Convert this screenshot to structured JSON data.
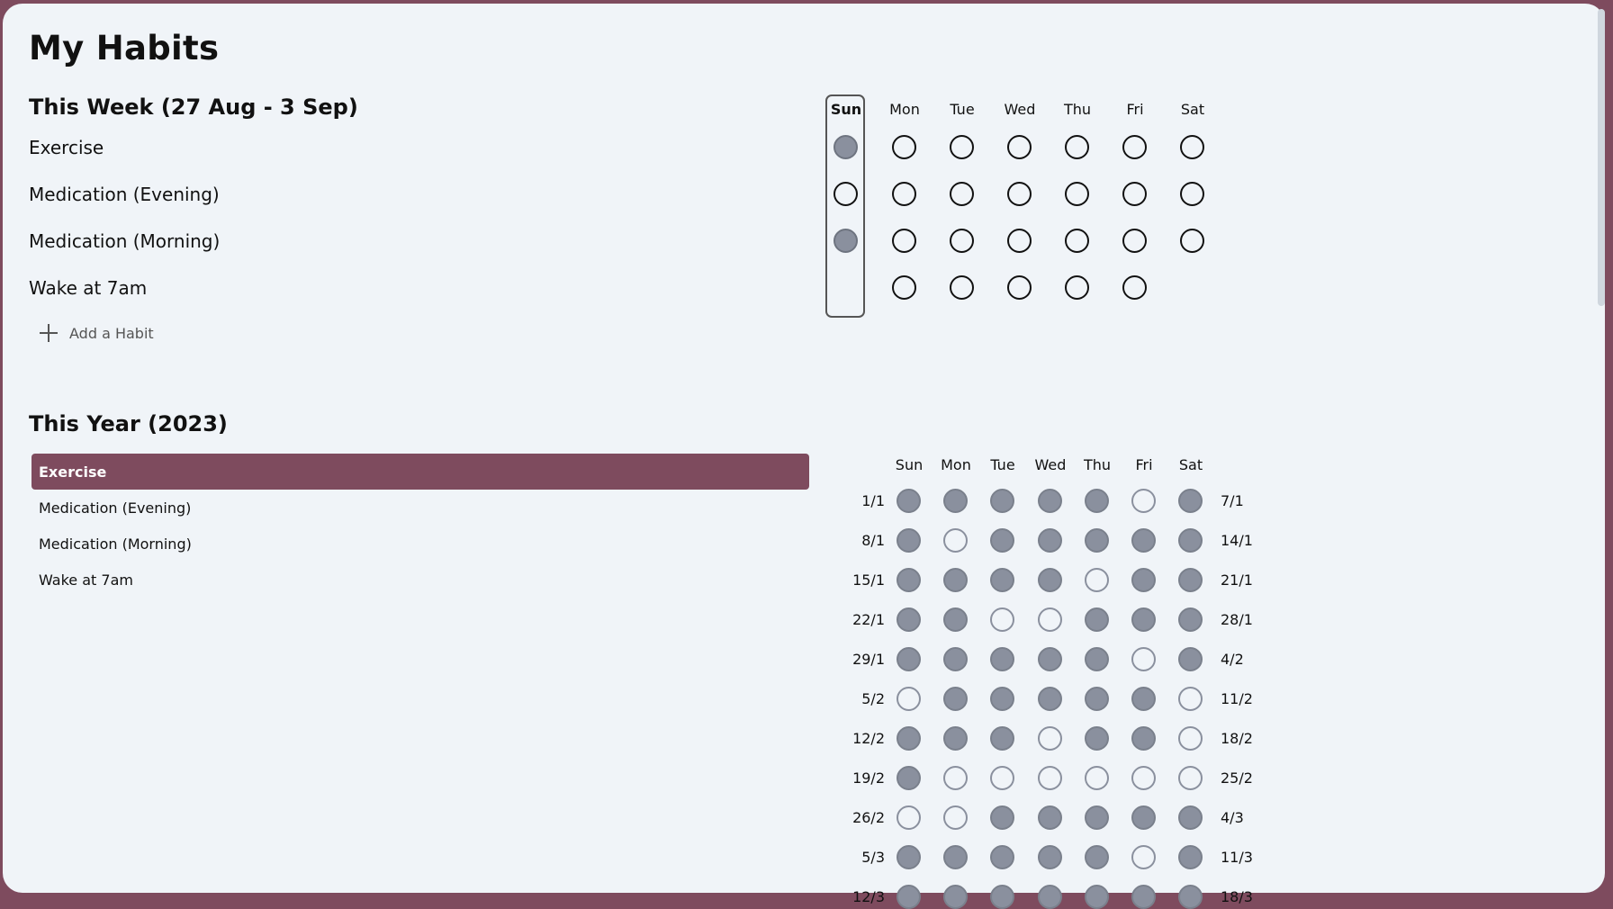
{
  "title": "My Habits",
  "week": {
    "title": "This Week (27 Aug - 3 Sep)",
    "days": [
      "Sun",
      "Mon",
      "Tue",
      "Wed",
      "Thu",
      "Fri",
      "Sat"
    ],
    "today_index": 0,
    "habits": [
      {
        "name": "Exercise",
        "checks": [
          true,
          false,
          false,
          false,
          false,
          false,
          false
        ]
      },
      {
        "name": "Medication (Evening)",
        "checks": [
          false,
          false,
          false,
          false,
          false,
          false,
          false
        ]
      },
      {
        "name": "Medication (Morning)",
        "checks": [
          true,
          false,
          false,
          false,
          false,
          false,
          false
        ]
      },
      {
        "name": "Wake at 7am",
        "checks": [
          null,
          false,
          false,
          false,
          false,
          false,
          null
        ]
      }
    ],
    "add_label": "Add a Habit"
  },
  "year": {
    "title": "This Year (2023)",
    "habits": [
      "Exercise",
      "Medication (Evening)",
      "Medication (Morning)",
      "Wake at 7am"
    ],
    "selected_index": 0,
    "days": [
      "Sun",
      "Mon",
      "Tue",
      "Wed",
      "Thu",
      "Fri",
      "Sat"
    ],
    "weeks": [
      {
        "start": "1/1",
        "end": "7/1",
        "checks": [
          1,
          1,
          1,
          1,
          1,
          0,
          1
        ]
      },
      {
        "start": "8/1",
        "end": "14/1",
        "checks": [
          1,
          0,
          1,
          1,
          1,
          1,
          1
        ]
      },
      {
        "start": "15/1",
        "end": "21/1",
        "checks": [
          1,
          1,
          1,
          1,
          0,
          1,
          1
        ]
      },
      {
        "start": "22/1",
        "end": "28/1",
        "checks": [
          1,
          1,
          0,
          0,
          1,
          1,
          1
        ]
      },
      {
        "start": "29/1",
        "end": "4/2",
        "checks": [
          1,
          1,
          1,
          1,
          1,
          0,
          1
        ]
      },
      {
        "start": "5/2",
        "end": "11/2",
        "checks": [
          0,
          1,
          1,
          1,
          1,
          1,
          0
        ]
      },
      {
        "start": "12/2",
        "end": "18/2",
        "checks": [
          1,
          1,
          1,
          0,
          1,
          1,
          0
        ]
      },
      {
        "start": "19/2",
        "end": "25/2",
        "checks": [
          1,
          0,
          0,
          0,
          0,
          0,
          0
        ]
      },
      {
        "start": "26/2",
        "end": "4/3",
        "checks": [
          0,
          0,
          1,
          1,
          1,
          1,
          1
        ]
      },
      {
        "start": "5/3",
        "end": "11/3",
        "checks": [
          1,
          1,
          1,
          1,
          1,
          0,
          1
        ]
      },
      {
        "start": "12/3",
        "end": "18/3",
        "checks": [
          1,
          1,
          1,
          1,
          1,
          1,
          1
        ]
      }
    ]
  },
  "colors": {
    "accent": "#7e4b5e",
    "background": "#f0f4f8",
    "done": "#8a909e"
  }
}
